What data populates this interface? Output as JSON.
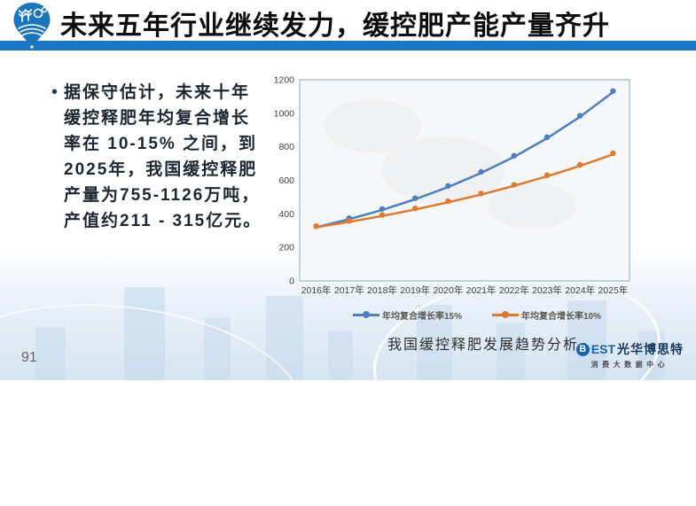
{
  "header": {
    "title": "未来五年行业继续发力，缓控肥产能产量齐升",
    "bar_color": "#1b76c4",
    "logo_icon": "wheat-tractor-pin"
  },
  "bullet": {
    "marker": "•",
    "lines": [
      "据保守估计，未来十年",
      "缓控释肥年均复合增长",
      "率在 10-15% 之间，到",
      "2025年，我国缓控释肥",
      "产量为755-1126万吨，",
      "产值约211 - 315亿元。"
    ]
  },
  "chart_data": {
    "type": "line",
    "categories": [
      "2016年",
      "2017年",
      "2018年",
      "2019年",
      "2020年",
      "2021年",
      "2022年",
      "2023年",
      "2024年",
      "2025年"
    ],
    "series": [
      {
        "name": "年均复合增长率15%",
        "color": "#4e80bd",
        "values": [
          320,
          368,
          423,
          487,
          560,
          644,
          740,
          851,
          979,
          1126
        ]
      },
      {
        "name": "年均复合增长率10%",
        "color": "#dc7b32",
        "values": [
          320,
          352,
          387,
          426,
          469,
          515,
          567,
          624,
          686,
          755
        ]
      }
    ],
    "ylim": [
      0,
      1200
    ],
    "yticks": [
      0,
      200,
      400,
      600,
      800,
      1000,
      1200
    ],
    "grid": false,
    "legend_position": "bottom",
    "plot_border_color": "#a9c7dd",
    "plot_bg_color": "#f6f7f8",
    "axis_text_color": "#404040",
    "caption": "我国缓控释肥发展趋势分析"
  },
  "footer": {
    "page_number": "91",
    "brand": {
      "b": "B",
      "est": "EST",
      "name": "光华博思特",
      "subtitle": "消费大数据中心"
    }
  }
}
